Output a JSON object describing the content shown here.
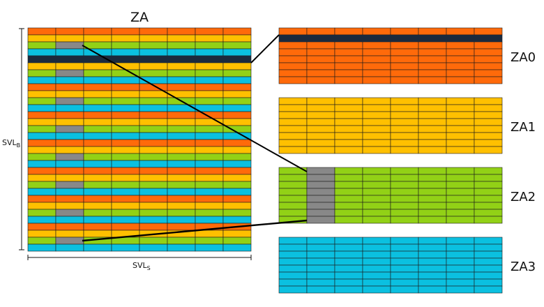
{
  "title": "ZA",
  "dimensions": {
    "rows_label": "SVL",
    "rows_sub": "B",
    "cols_label": "SVL",
    "cols_sub": "S"
  },
  "za_array": {
    "columns": 8,
    "row_pattern": [
      "orange",
      "yellow",
      "green",
      "cyan"
    ],
    "repeats": 8,
    "grey_cell_column": 1,
    "grey_cell_color_index": 2,
    "highlight_row": 4
  },
  "tiles": [
    {
      "label": "ZA0",
      "color": "orange",
      "rows": 8,
      "columns": 8,
      "highlight_row": 1
    },
    {
      "label": "ZA1",
      "color": "yellow",
      "rows": 8,
      "columns": 8
    },
    {
      "label": "ZA2",
      "color": "green",
      "rows": 8,
      "columns": 8,
      "grey_column": 1
    },
    {
      "label": "ZA3",
      "color": "cyan",
      "rows": 8,
      "columns": 8
    }
  ],
  "colors": {
    "orange": "#ff6a0a",
    "yellow": "#ffc000",
    "green": "#92d116",
    "cyan": "#0bc0e0",
    "grey": "#888888",
    "navy": "#1b2a3d",
    "grid": "#1c1c1c",
    "text": "#111111"
  }
}
